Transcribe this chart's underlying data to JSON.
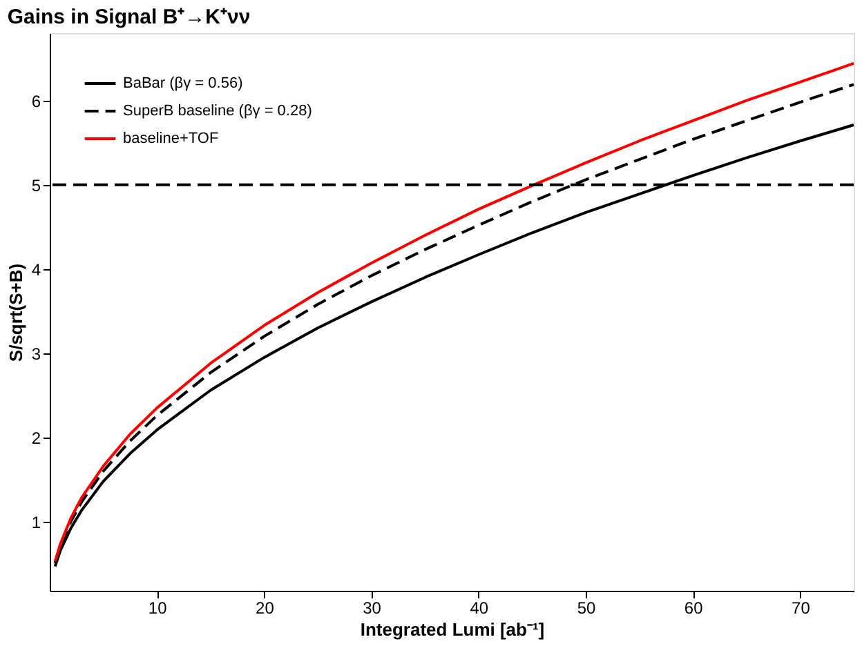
{
  "chart_data": {
    "type": "line",
    "title": "Gains in Signal B⁺→K⁺νν",
    "xlabel": "Integrated Lumi [ab⁻¹]",
    "ylabel": "S/sqrt(S+B)",
    "x": [
      0.5,
      1,
      2,
      3,
      5,
      7.5,
      10,
      15,
      20,
      25,
      30,
      35,
      40,
      45,
      50,
      55,
      60,
      65,
      70,
      75
    ],
    "series": [
      {
        "name": "BaBar (βγ = 0.56)",
        "color": "#000000",
        "line_style": "solid",
        "values": [
          0.47,
          0.66,
          0.93,
          1.14,
          1.48,
          1.81,
          2.09,
          2.56,
          2.95,
          3.3,
          3.61,
          3.9,
          4.17,
          4.43,
          4.67,
          4.89,
          5.11,
          5.32,
          5.52,
          5.71
        ]
      },
      {
        "name": "SuperB baseline (βγ = 0.28)",
        "color": "#000000",
        "line_style": "dashed",
        "values": [
          0.51,
          0.72,
          1.01,
          1.24,
          1.6,
          1.96,
          2.26,
          2.77,
          3.2,
          3.58,
          3.92,
          4.23,
          4.52,
          4.8,
          5.06,
          5.3,
          5.54,
          5.76,
          5.98,
          6.19
        ]
      },
      {
        "name": "baseline+TOF",
        "color": "#ff0000",
        "line_style": "solid",
        "values": [
          0.53,
          0.74,
          1.05,
          1.29,
          1.66,
          2.04,
          2.35,
          2.88,
          3.33,
          3.72,
          4.07,
          4.4,
          4.71,
          4.99,
          5.26,
          5.52,
          5.76,
          6.0,
          6.22,
          6.44
        ]
      }
    ],
    "xlim": [
      0,
      75
    ],
    "xticks": [
      10,
      20,
      30,
      40,
      50,
      60,
      70
    ],
    "ylim": [
      0.18,
      6.8
    ],
    "yticks": [
      1,
      2,
      3,
      4,
      5,
      6
    ],
    "ref_lines": [
      {
        "axis": "y",
        "value": 5,
        "label": null,
        "color": "#000000",
        "line_style": "dashed"
      }
    ],
    "grid": false,
    "legend": "top left",
    "marker": "none"
  }
}
